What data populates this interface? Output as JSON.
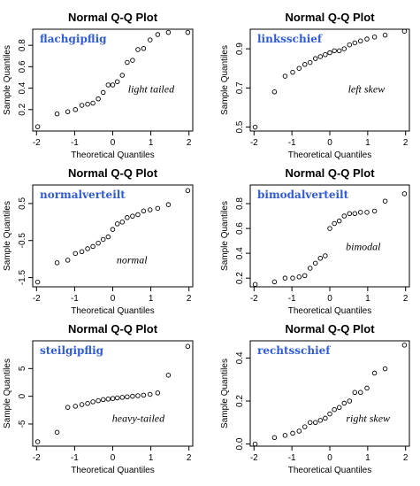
{
  "chart_data": [
    {
      "type": "scatter",
      "title": "Normal Q-Q Plot",
      "xlabel": "Theoretical Quantiles",
      "ylabel": "Sample Quantiles",
      "label": "flachgipflig",
      "annotation": "light tailed",
      "xlim": [
        -2.1,
        2.1
      ],
      "ylim": [
        0.0,
        0.95
      ],
      "xticks": [
        -2,
        -1,
        0,
        1,
        2
      ],
      "yticks": [
        0.2,
        0.4,
        0.6,
        0.8
      ],
      "ytick_labels": [
        "0.2",
        "0.4",
        "0.6",
        "0.8"
      ],
      "x": [
        -1.97,
        -1.46,
        -1.18,
        -0.98,
        -0.81,
        -0.66,
        -0.52,
        -0.38,
        -0.25,
        -0.12,
        0.0,
        0.12,
        0.25,
        0.38,
        0.52,
        0.66,
        0.81,
        0.98,
        1.18,
        1.46,
        1.97
      ],
      "y": [
        0.04,
        0.16,
        0.18,
        0.2,
        0.24,
        0.25,
        0.26,
        0.3,
        0.36,
        0.43,
        0.43,
        0.46,
        0.52,
        0.64,
        0.66,
        0.76,
        0.77,
        0.85,
        0.9,
        0.92,
        0.92
      ]
    },
    {
      "type": "scatter",
      "title": "Normal Q-Q Plot",
      "xlabel": "Theoretical Quantiles",
      "ylabel": "Sample Quantiles",
      "label": "linksschief",
      "annotation": "left skew",
      "xlim": [
        -2.1,
        2.1
      ],
      "ylim": [
        0.48,
        1.0
      ],
      "xticks": [
        -2,
        -1,
        0,
        1,
        2
      ],
      "yticks": [
        0.5,
        0.7,
        0.9
      ],
      "ytick_labels": [
        "0.5",
        "0.7",
        "0.9"
      ],
      "x": [
        -1.97,
        -1.46,
        -1.18,
        -0.98,
        -0.81,
        -0.66,
        -0.52,
        -0.38,
        -0.25,
        -0.12,
        0.0,
        0.12,
        0.25,
        0.38,
        0.52,
        0.66,
        0.81,
        0.98,
        1.18,
        1.46,
        1.97
      ],
      "y": [
        0.5,
        0.68,
        0.76,
        0.78,
        0.8,
        0.82,
        0.83,
        0.85,
        0.86,
        0.87,
        0.88,
        0.89,
        0.89,
        0.9,
        0.92,
        0.93,
        0.94,
        0.95,
        0.96,
        0.97,
        0.99
      ]
    },
    {
      "type": "scatter",
      "title": "Normal Q-Q Plot",
      "xlabel": "Theoretical Quantiles",
      "ylabel": "Sample Quantiles",
      "label": "normalverteilt",
      "annotation": "normal",
      "xlim": [
        -2.1,
        2.1
      ],
      "ylim": [
        -1.75,
        1.0
      ],
      "xticks": [
        -2,
        -1,
        0,
        1,
        2
      ],
      "yticks": [
        -1.5,
        -0.5,
        0.5
      ],
      "ytick_labels": [
        "-1.5",
        "-0.5",
        "0.5"
      ],
      "x": [
        -1.97,
        -1.46,
        -1.18,
        -0.98,
        -0.81,
        -0.66,
        -0.52,
        -0.38,
        -0.25,
        -0.12,
        0.0,
        0.12,
        0.25,
        0.38,
        0.52,
        0.66,
        0.81,
        0.98,
        1.18,
        1.46,
        1.97
      ],
      "y": [
        -1.62,
        -1.1,
        -1.03,
        -0.85,
        -0.8,
        -0.72,
        -0.66,
        -0.57,
        -0.47,
        -0.4,
        -0.2,
        -0.05,
        0.0,
        0.12,
        0.16,
        0.2,
        0.3,
        0.33,
        0.37,
        0.47,
        0.85
      ]
    },
    {
      "type": "scatter",
      "title": "Normal Q-Q Plot",
      "xlabel": "Theoretical Quantiles",
      "ylabel": "Sample Quantiles",
      "label": "bimodalverteilt",
      "annotation": "bimodal",
      "xlim": [
        -2.1,
        2.1
      ],
      "ylim": [
        0.13,
        0.95
      ],
      "xticks": [
        -2,
        -1,
        0,
        1,
        2
      ],
      "yticks": [
        0.2,
        0.4,
        0.6,
        0.8
      ],
      "ytick_labels": [
        "0.2",
        "0.4",
        "0.6",
        "0.8"
      ],
      "x": [
        -1.97,
        -1.46,
        -1.18,
        -0.98,
        -0.81,
        -0.66,
        -0.52,
        -0.38,
        -0.25,
        -0.12,
        0.0,
        0.12,
        0.25,
        0.38,
        0.52,
        0.66,
        0.81,
        0.98,
        1.18,
        1.46,
        1.97
      ],
      "y": [
        0.15,
        0.17,
        0.2,
        0.2,
        0.21,
        0.22,
        0.28,
        0.32,
        0.36,
        0.38,
        0.6,
        0.64,
        0.66,
        0.7,
        0.72,
        0.72,
        0.73,
        0.73,
        0.74,
        0.82,
        0.88
      ]
    },
    {
      "type": "scatter",
      "title": "Normal Q-Q Plot",
      "xlabel": "Theoretical Quantiles",
      "ylabel": "Sample Quantiles",
      "label": "steilgipflig",
      "annotation": "heavy-tailed",
      "xlim": [
        -2.1,
        2.1
      ],
      "ylim": [
        -9.0,
        10.0
      ],
      "xticks": [
        -2,
        -1,
        0,
        1,
        2
      ],
      "yticks": [
        -5,
        0,
        5
      ],
      "ytick_labels": [
        "-5",
        "0",
        "5"
      ],
      "x": [
        -1.97,
        -1.46,
        -1.18,
        -0.98,
        -0.81,
        -0.66,
        -0.52,
        -0.38,
        -0.25,
        -0.12,
        0.0,
        0.12,
        0.25,
        0.38,
        0.52,
        0.66,
        0.81,
        0.98,
        1.18,
        1.46,
        1.97
      ],
      "y": [
        -8.2,
        -6.5,
        -2.0,
        -1.8,
        -1.5,
        -1.3,
        -1.0,
        -0.8,
        -0.6,
        -0.5,
        -0.4,
        -0.3,
        -0.2,
        -0.1,
        0.0,
        0.1,
        0.2,
        0.35,
        0.6,
        3.8,
        9.0
      ]
    },
    {
      "type": "scatter",
      "title": "Normal Q-Q Plot",
      "xlabel": "Theoretical Quantiles",
      "ylabel": "Sample Quantiles",
      "label": "rechtsschief",
      "annotation": "right skew",
      "xlim": [
        -2.1,
        2.1
      ],
      "ylim": [
        -0.01,
        0.48
      ],
      "xticks": [
        -2,
        -1,
        0,
        1,
        2
      ],
      "yticks": [
        0.0,
        0.2,
        0.4
      ],
      "ytick_labels": [
        "0.0",
        "0.2",
        "0.4"
      ],
      "x": [
        -1.97,
        -1.46,
        -1.18,
        -0.98,
        -0.81,
        -0.66,
        -0.52,
        -0.38,
        -0.25,
        -0.12,
        0.0,
        0.12,
        0.25,
        0.38,
        0.52,
        0.66,
        0.81,
        0.98,
        1.18,
        1.46,
        1.97
      ],
      "y": [
        0.0,
        0.03,
        0.04,
        0.05,
        0.06,
        0.08,
        0.1,
        0.1,
        0.11,
        0.12,
        0.14,
        0.16,
        0.17,
        0.19,
        0.2,
        0.24,
        0.24,
        0.26,
        0.33,
        0.35,
        0.46
      ]
    }
  ]
}
